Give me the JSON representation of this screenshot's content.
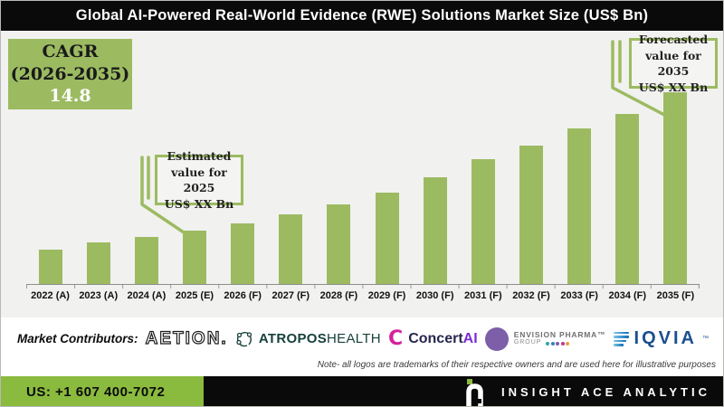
{
  "title": "Global AI-Powered Real-World Evidence (RWE) Solutions Market Size (US$ Bn)",
  "cagr_box": {
    "heading": "CAGR",
    "range": "(2026-2035)",
    "value": "14.8"
  },
  "callouts": {
    "estimated": {
      "lines": [
        "Estimated",
        "value for 2025",
        "US$ XX Bn"
      ]
    },
    "forecasted": {
      "lines": [
        "Forecasted",
        "value for 2035",
        "US$ XX Bn"
      ]
    }
  },
  "chart_data": {
    "type": "bar",
    "title": "Global AI-Powered Real-World Evidence (RWE) Solutions Market Size (US$ Bn)",
    "unit": "US$ Bn",
    "categories": [
      "2022 (A)",
      "2023 (A)",
      "2024 (A)",
      "2025 (E)",
      "2026 (F)",
      "2027 (F)",
      "2028 (F)",
      "2029 (F)",
      "2030 (F)",
      "2031 (F)",
      "2032 (F)",
      "2033 (F)",
      "2034 (F)",
      "2035 (F)"
    ],
    "values_pct_of_max": [
      18,
      21.7,
      24.5,
      27.8,
      31.6,
      36.3,
      41.5,
      47.6,
      55.7,
      65.1,
      72.2,
      81.1,
      88.7,
      100
    ],
    "values_note": "Actual values masked in source as 'US$ XX Bn'; heights estimated as % of the 2035 bar",
    "estimated_2025_label": "US$ XX Bn",
    "forecasted_2035_label": "US$ XX Bn",
    "cagr_2026_2035_pct": 14.8,
    "bar_color": "#9CBB61",
    "y_axis": "hidden",
    "gridlines": false,
    "legend": "none"
  },
  "contributors": {
    "label": "Market Contributors:",
    "aetion": {
      "text": "AETION."
    },
    "atropos": {
      "word1": "ATROPOS",
      "word2": "HEALTH"
    },
    "concertai": {
      "icon": "C",
      "word1": "Concert",
      "word2": "AI"
    },
    "envision": {
      "line1": "ENVISION PHARMA™",
      "line2": "GROUP"
    },
    "iqvia": {
      "text": "IQVIA",
      "tm": "™"
    }
  },
  "note": "Note- all logos are trademarks of their respective owners and are used here for illustrative purposes",
  "footer": {
    "phone": "US: +1 607 400-7072",
    "brand": "INSIGHT ACE ANALYTIC"
  },
  "colors": {
    "bar_green": "#9CBB61",
    "footer_green": "#8ABA3E",
    "title_bar": "#0a0a0a",
    "chart_background": "#F1F1EF",
    "callout_border": "#9CBB61"
  }
}
